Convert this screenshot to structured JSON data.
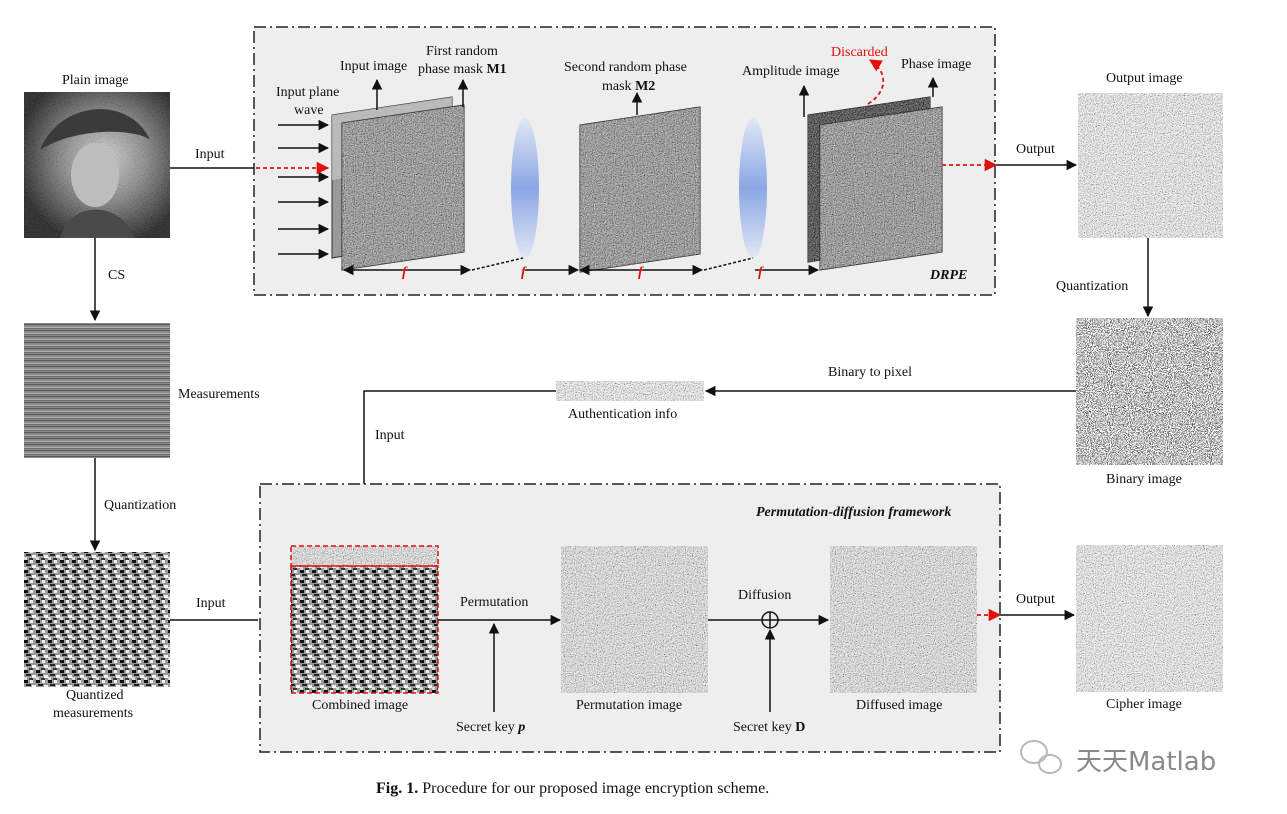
{
  "drpe": {
    "title": "DRPE",
    "input_plane_wave": [
      "Input plane",
      "wave"
    ],
    "input_image": "Input image",
    "first_mask": [
      "First random",
      "phase mask",
      "M1"
    ],
    "second_mask": [
      "Second random phase",
      "mask",
      "M2"
    ],
    "amplitude_image": "Amplitude image",
    "phase_image": "Phase image",
    "discarded": "Discarded",
    "focal": "f"
  },
  "pd": {
    "title": "Permutation-diffusion framework",
    "combined_image": "Combined image",
    "permutation": "Permutation",
    "permutation_image": "Permutation  image",
    "secret_key_p": [
      "Secret key ",
      "p"
    ],
    "diffusion": "Diffusion",
    "diffused_image": "Diffused image",
    "secret_key_d": [
      "Secret key ",
      "D"
    ]
  },
  "labels": {
    "plain_image": "Plain image",
    "input_top": "Input",
    "cs": "CS",
    "measurements": "Measurements",
    "quantization_left": "Quantization",
    "quantized_measurements": [
      "Quantized",
      "measurements"
    ],
    "input_bottom": "Input",
    "output_top": "Output",
    "output_image": "Output image",
    "quantization_right": "Quantization",
    "binary_image": "Binary image",
    "binary_to_pixel": "Binary to pixel",
    "authentication_info": "Authentication  info",
    "input_mid": "Input",
    "output_bottom": "Output",
    "cipher_image": "Cipher image"
  },
  "caption": {
    "prefix": "Fig. 1.",
    "text": " Procedure for our proposed image encryption scheme."
  },
  "watermark": "天天Matlab",
  "colors": {
    "red_arrow": "#e01010",
    "box_fill": "#eeeeee",
    "lens": "#8aa6e6"
  }
}
